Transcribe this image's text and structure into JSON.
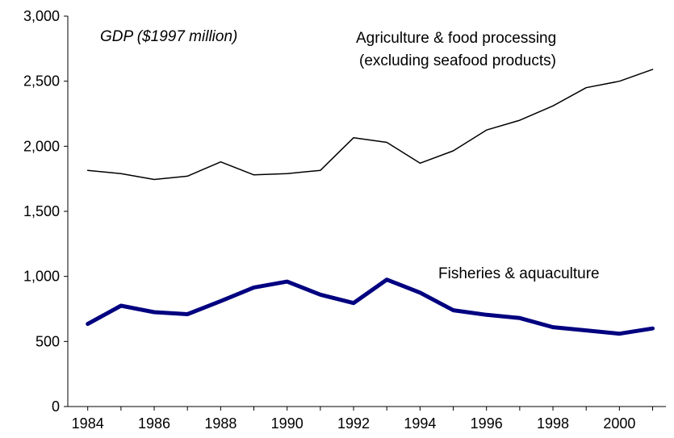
{
  "chart_data": {
    "type": "line",
    "title": "",
    "xlabel": "",
    "ylabel": "",
    "x": [
      1984,
      1985,
      1986,
      1987,
      1988,
      1989,
      1990,
      1991,
      1992,
      1993,
      1994,
      1995,
      1996,
      1997,
      1998,
      1999,
      2000,
      2001
    ],
    "x_tick_labels": [
      "1984",
      "1986",
      "1988",
      "1990",
      "1992",
      "1994",
      "1996",
      "1998",
      "2000"
    ],
    "y_tick_labels": [
      "0",
      "500",
      "1,000",
      "1,500",
      "2,000",
      "2,500",
      "3,000"
    ],
    "ylim": [
      0,
      3000
    ],
    "grid": false,
    "annotations": {
      "units": "GDP ($1997 million)",
      "agri_line1": "Agriculture & food processing",
      "agri_line2": "(excluding seafood products)",
      "fish": "Fisheries & aquaculture"
    },
    "series": [
      {
        "label_ref": "agri",
        "color": "#000000",
        "values": [
          1815,
          1790,
          1745,
          1770,
          1880,
          1780,
          1790,
          1815,
          2065,
          2030,
          1870,
          1965,
          2125,
          2200,
          2310,
          2450,
          2500,
          2590
        ]
      },
      {
        "label_ref": "fish",
        "color": "#000080",
        "values": [
          635,
          775,
          725,
          710,
          810,
          915,
          960,
          860,
          795,
          975,
          875,
          740,
          705,
          680,
          610,
          585,
          560,
          600
        ]
      }
    ]
  }
}
